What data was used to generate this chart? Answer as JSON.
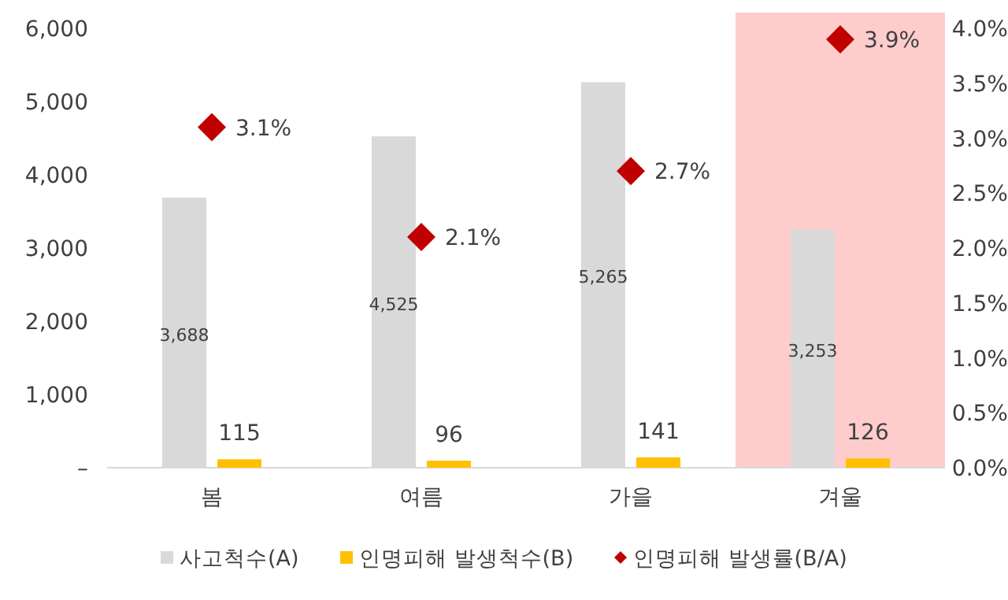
{
  "chart_data": {
    "type": "bar",
    "categories": [
      "봄",
      "여름",
      "가을",
      "겨울"
    ],
    "series": [
      {
        "name": "사고척수(A)",
        "color": "#d9d9d9",
        "values": [
          3688,
          4525,
          5265,
          3253
        ],
        "value_labels": [
          "3,688",
          "4,525",
          "5,265",
          "3,253"
        ]
      },
      {
        "name": "인명피해 발생척수(B)",
        "color": "#ffc000",
        "values": [
          115,
          96,
          141,
          126
        ],
        "value_labels": [
          "115",
          "96",
          "141",
          "126"
        ]
      },
      {
        "name": "인명피해 발생률(B/A)",
        "type": "scatter",
        "axis": "y2",
        "marker": "diamond",
        "color": "#c00000",
        "values": [
          3.1,
          2.1,
          2.7,
          3.9
        ],
        "value_labels": [
          "3.1%",
          "2.1%",
          "2.7%",
          "3.9%"
        ]
      }
    ],
    "ylim": [
      0,
      6000
    ],
    "yticks": [
      {
        "value": 0,
        "label": "–"
      },
      {
        "value": 1000,
        "label": "1,000"
      },
      {
        "value": 2000,
        "label": "2,000"
      },
      {
        "value": 3000,
        "label": "3,000"
      },
      {
        "value": 4000,
        "label": "4,000"
      },
      {
        "value": 5000,
        "label": "5,000"
      },
      {
        "value": 6000,
        "label": "6,000"
      }
    ],
    "y2lim": [
      0,
      4
    ],
    "y2ticks": [
      {
        "value": 0,
        "label": "0.0%"
      },
      {
        "value": 0.5,
        "label": "0.5%"
      },
      {
        "value": 1,
        "label": "1.0%"
      },
      {
        "value": 1.5,
        "label": "1.5%"
      },
      {
        "value": 2,
        "label": "2.0%"
      },
      {
        "value": 2.5,
        "label": "2.5%"
      },
      {
        "value": 3,
        "label": "3.0%"
      },
      {
        "value": 3.5,
        "label": "3.5%"
      },
      {
        "value": 4,
        "label": "4.0%"
      }
    ],
    "bands": [
      {
        "axis": "x",
        "from": "겨울",
        "to": "겨울",
        "color": "#ffcccc"
      }
    ],
    "legend": "bottom"
  }
}
